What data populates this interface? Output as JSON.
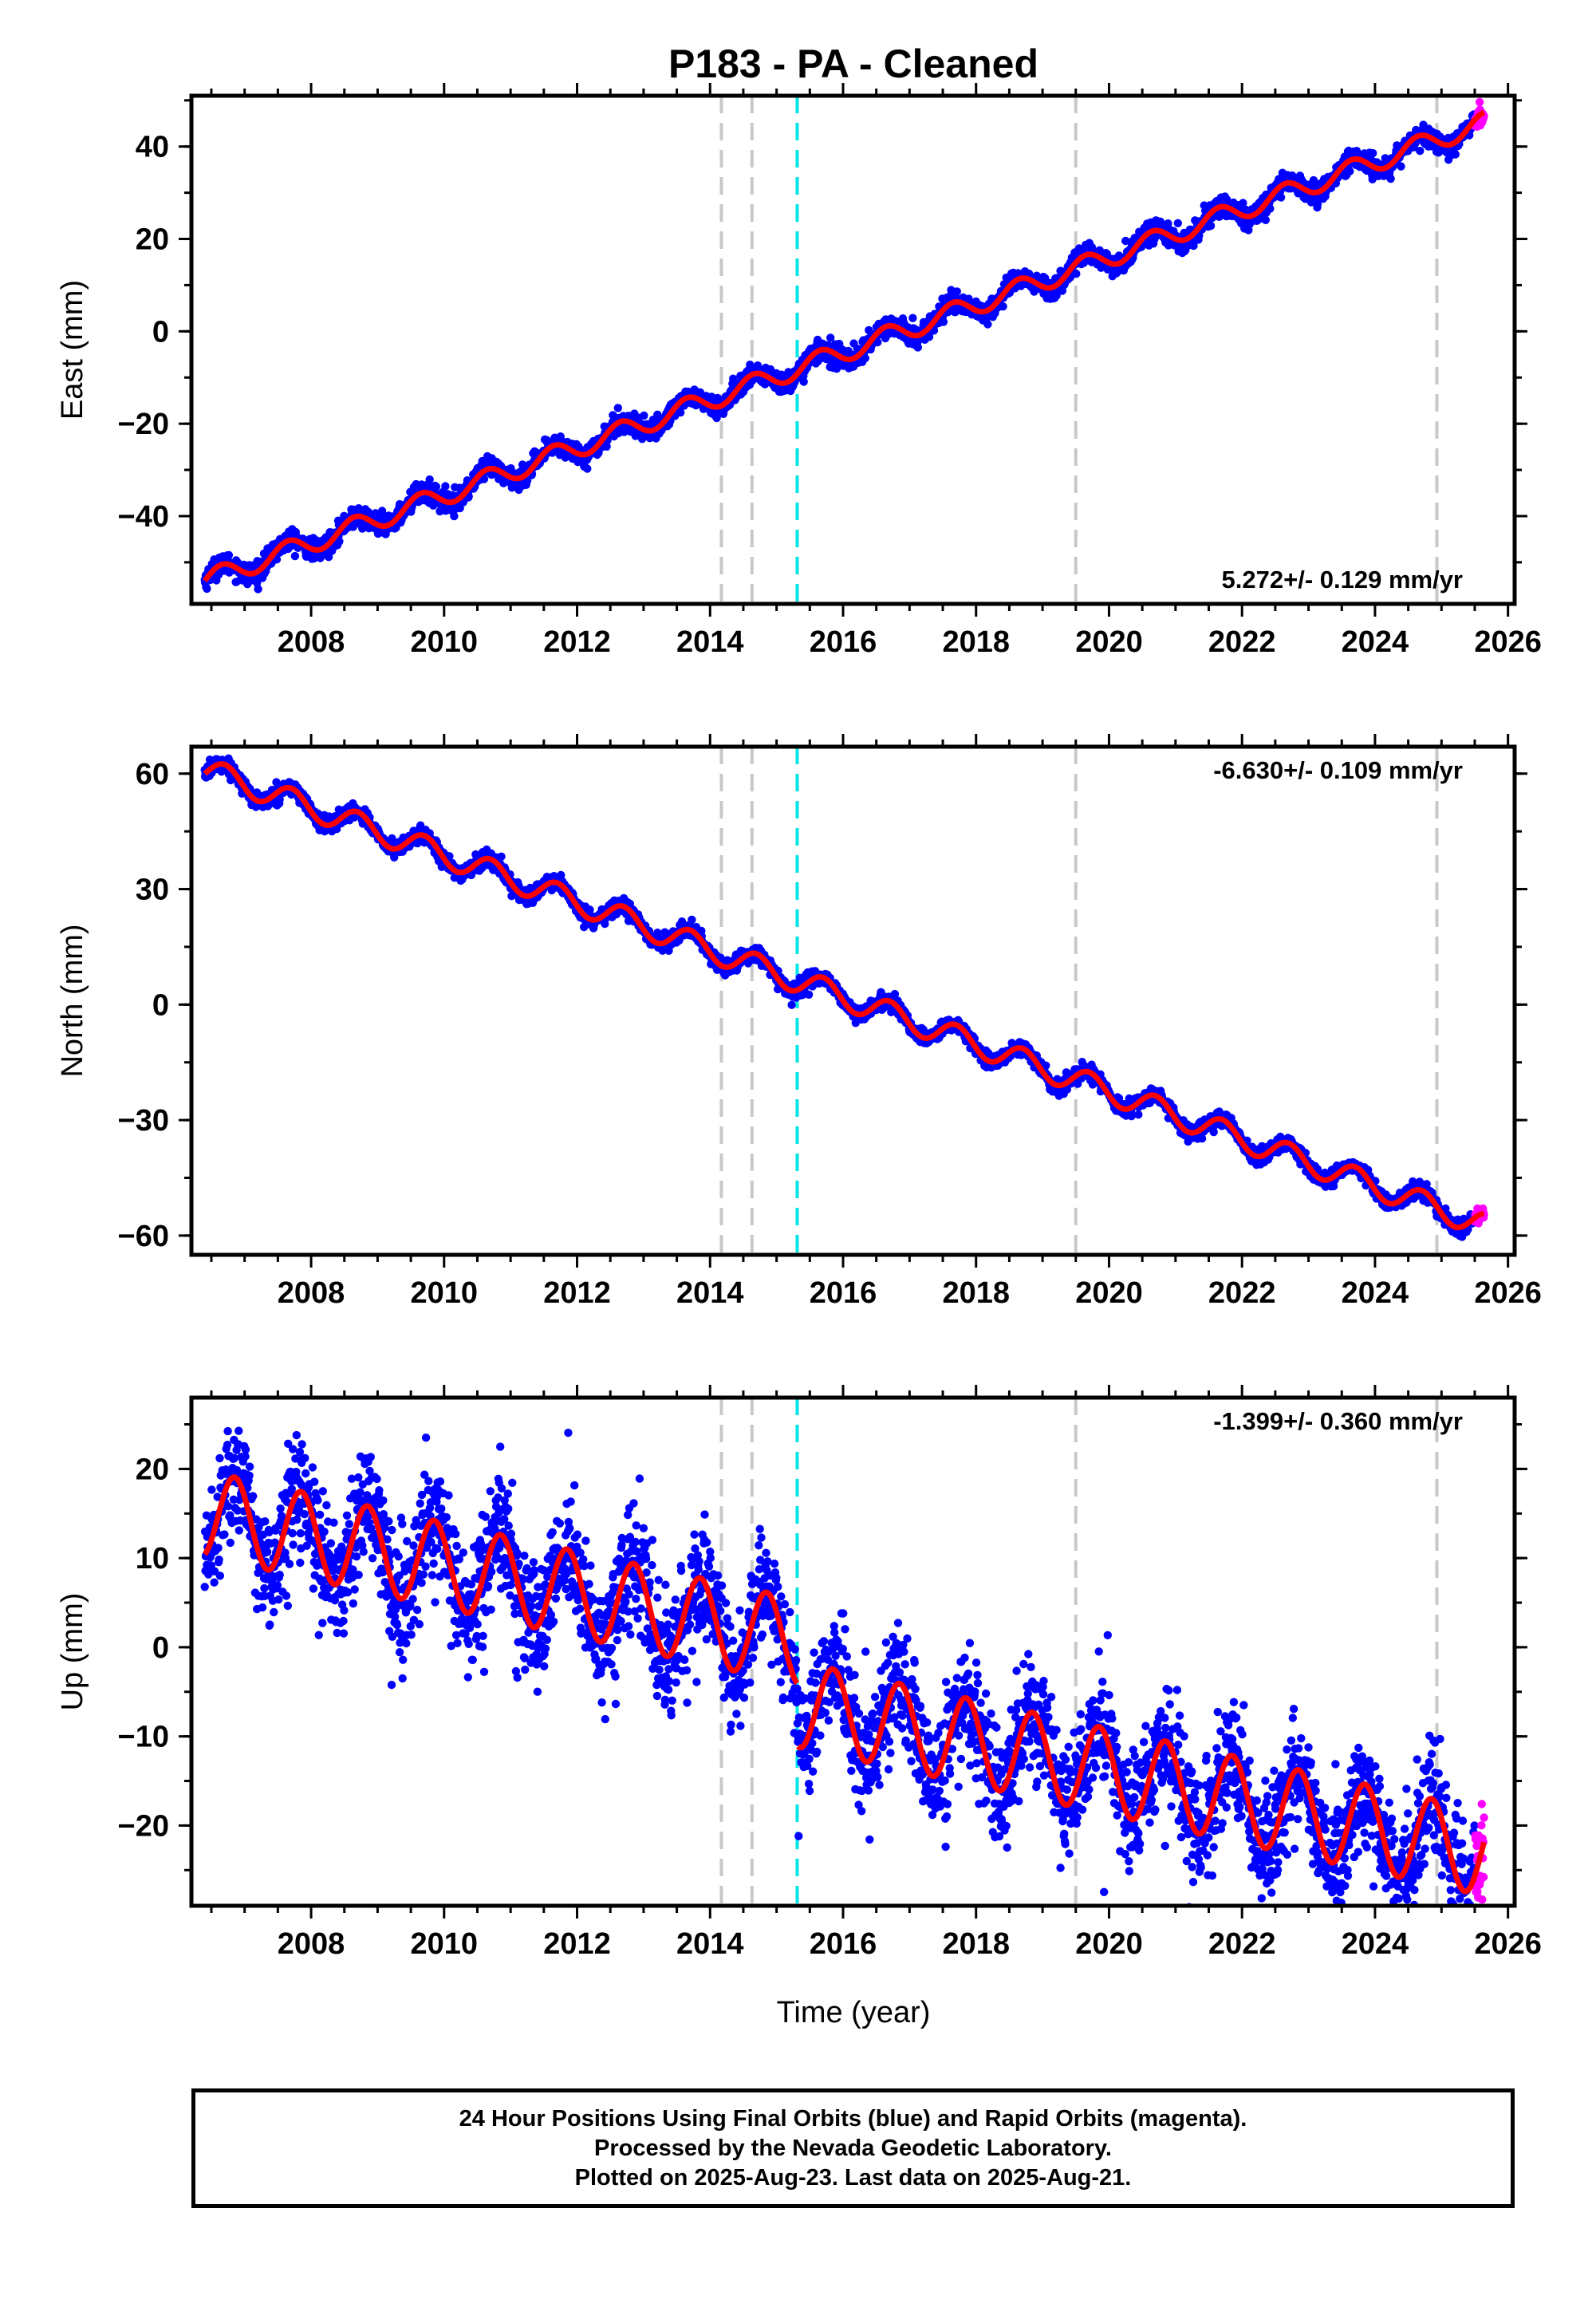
{
  "title": "P183  - PA - Cleaned",
  "xlabel": "Time (year)",
  "caption": [
    "24 Hour Positions Using Final Orbits (blue) and Rapid Orbits (magenta).",
    "Processed by the Nevada Geodetic Laboratory.",
    "Plotted on 2025-Aug-23. Last data on 2025-Aug-21."
  ],
  "colors": {
    "final_orbits": "#0000ff",
    "rapid_orbits": "#ff00ff",
    "model_fit": "#ff0000",
    "event_gray": "#c8c8c8",
    "event_cyan": "#00e5e5"
  },
  "chart_data": [
    {
      "type": "scatter",
      "ylabel": "East (mm)",
      "xlim": [
        2006.2,
        2026.1
      ],
      "ylim": [
        -59,
        51
      ],
      "x_ticks": [
        2008,
        2010,
        2012,
        2014,
        2016,
        2018,
        2020,
        2022,
        2024,
        2026
      ],
      "y_ticks": [
        -40,
        -20,
        0,
        20,
        40
      ],
      "y_tick_labels": [
        "−40",
        "−20",
        "0",
        "20",
        "40"
      ],
      "velocity_label": "5.272+/- 0.129 mm/yr",
      "velocity_label_position": "bottom-right",
      "data_start": 2006.4,
      "data_end": 2025.64,
      "rapid_start": 2025.5,
      "trend": {
        "at_2006_4": -54,
        "at_2025_6": 45
      },
      "seasonal_amplitude": 2.2,
      "seasonal_phase_year": 0.4,
      "noise_sd": 1.1,
      "offsets": [],
      "events": [
        {
          "year": 2014.17,
          "type": "gray"
        },
        {
          "year": 2014.63,
          "type": "gray"
        },
        {
          "year": 2015.31,
          "type": "cyan"
        },
        {
          "year": 2019.5,
          "type": "gray"
        },
        {
          "year": 2024.93,
          "type": "gray"
        }
      ]
    },
    {
      "type": "scatter",
      "ylabel": "North (mm)",
      "xlim": [
        2006.2,
        2026.1
      ],
      "ylim": [
        -65,
        67
      ],
      "x_ticks": [
        2008,
        2010,
        2012,
        2014,
        2016,
        2018,
        2020,
        2022,
        2024,
        2026
      ],
      "y_ticks": [
        -60,
        -30,
        0,
        30,
        60
      ],
      "y_tick_labels": [
        "−60",
        "−30",
        "0",
        "30",
        "60"
      ],
      "velocity_label": "-6.630+/- 0.109 mm/yr",
      "velocity_label_position": "top-right",
      "data_start": 2006.4,
      "data_end": 2025.64,
      "rapid_start": 2025.5,
      "trend": {
        "at_2006_4": 61,
        "at_2025_6": -57
      },
      "seasonal_amplitude": 3.2,
      "seasonal_phase_year": 0.45,
      "noise_sd": 1.0,
      "offsets": [],
      "events": [
        {
          "year": 2014.17,
          "type": "gray"
        },
        {
          "year": 2014.63,
          "type": "gray"
        },
        {
          "year": 2015.31,
          "type": "cyan"
        },
        {
          "year": 2019.5,
          "type": "gray"
        },
        {
          "year": 2024.93,
          "type": "gray"
        }
      ]
    },
    {
      "type": "scatter",
      "ylabel": "Up (mm)",
      "xlim": [
        2006.2,
        2026.1
      ],
      "ylim": [
        -29,
        28
      ],
      "x_ticks": [
        2008,
        2010,
        2012,
        2014,
        2016,
        2018,
        2020,
        2022,
        2024,
        2026
      ],
      "y_ticks": [
        -20,
        -10,
        0,
        10,
        20
      ],
      "y_tick_labels": [
        "−20",
        "−10",
        "0",
        "10",
        "20"
      ],
      "velocity_label": "-1.399+/- 0.360 mm/yr",
      "velocity_label_position": "top-right",
      "data_start": 2006.4,
      "data_end": 2025.64,
      "rapid_start": 2025.5,
      "trend": {
        "at_2006_4": 15,
        "at_2025_6": -16
      },
      "seasonal_amplitude": 4.8,
      "seasonal_phase_year": 0.6,
      "noise_sd": 3.2,
      "offsets": [
        {
          "year": 2015.31,
          "value": -7
        }
      ],
      "events": [
        {
          "year": 2014.17,
          "type": "gray"
        },
        {
          "year": 2014.63,
          "type": "gray"
        },
        {
          "year": 2015.31,
          "type": "cyan"
        },
        {
          "year": 2019.5,
          "type": "gray"
        },
        {
          "year": 2024.93,
          "type": "gray"
        }
      ]
    }
  ]
}
